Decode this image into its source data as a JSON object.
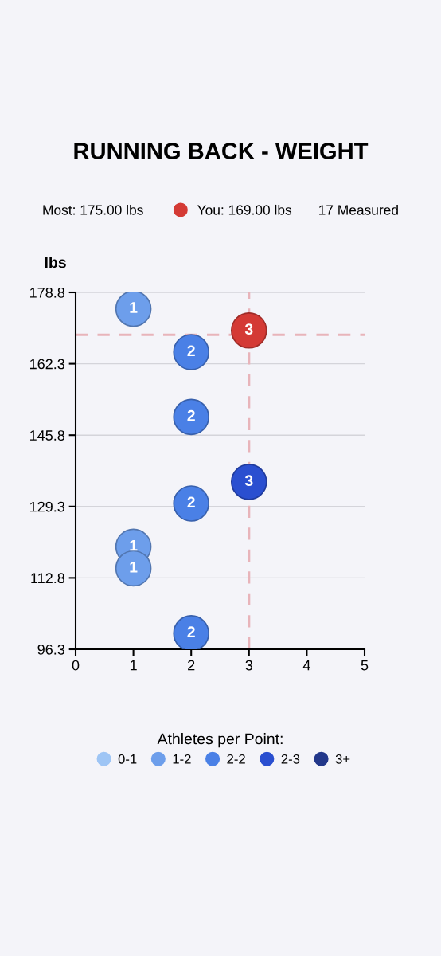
{
  "chart_data": {
    "type": "scatter",
    "title": "RUNNING BACK - WEIGHT",
    "ylabel": "lbs",
    "legend_title": "Athletes per Point:",
    "legend": "bottom",
    "marker": "circle",
    "grid": "y",
    "xlim": [
      0,
      5
    ],
    "xticks": [
      0,
      1,
      2,
      3,
      4,
      5
    ],
    "ylim": [
      96.3,
      178.8
    ],
    "yticks": [
      96.3,
      112.8,
      129.3,
      145.8,
      162.3,
      178.8
    ],
    "series": [
      {
        "name": "You: 169.00 lbs",
        "color": "#d43a35",
        "x": [
          3
        ],
        "values": [
          170
        ]
      },
      {
        "name": "0-1",
        "color": "#9ec5f5"
      },
      {
        "name": "1-2",
        "color": "#6d9eeb",
        "x": [
          1,
          1,
          1
        ],
        "values": [
          175,
          120,
          115
        ]
      },
      {
        "name": "2-2",
        "color": "#4a80e6",
        "x": [
          2,
          2,
          2,
          2
        ],
        "values": [
          165,
          150,
          130,
          100
        ]
      },
      {
        "name": "2-3",
        "color": "#2a4fd0",
        "x": [
          3
        ],
        "values": [
          135
        ]
      },
      {
        "name": "3+",
        "color": "#22378a"
      }
    ],
    "ref_lines": [
      {
        "axis": "y",
        "value": 169,
        "color": "#e8b4ba",
        "line_style": "dashed"
      },
      {
        "axis": "x",
        "value": 3,
        "color": "#e8b4ba",
        "line_style": "dashed"
      }
    ],
    "annotations": [
      "Most: 175.00 lbs",
      "17 Measured",
      {
        "text": "3",
        "x": 3,
        "y": 170
      },
      {
        "text": "1",
        "x": 1,
        "y": 175
      },
      {
        "text": "2",
        "x": 2,
        "y": 165
      },
      {
        "text": "2",
        "x": 2,
        "y": 150
      },
      {
        "text": "3",
        "x": 3,
        "y": 135
      },
      {
        "text": "2",
        "x": 2,
        "y": 130
      },
      {
        "text": "1",
        "x": 1,
        "y": 115
      },
      {
        "text": "1",
        "x": 1,
        "y": 120
      },
      {
        "text": "2",
        "x": 2,
        "y": 100
      }
    ]
  }
}
